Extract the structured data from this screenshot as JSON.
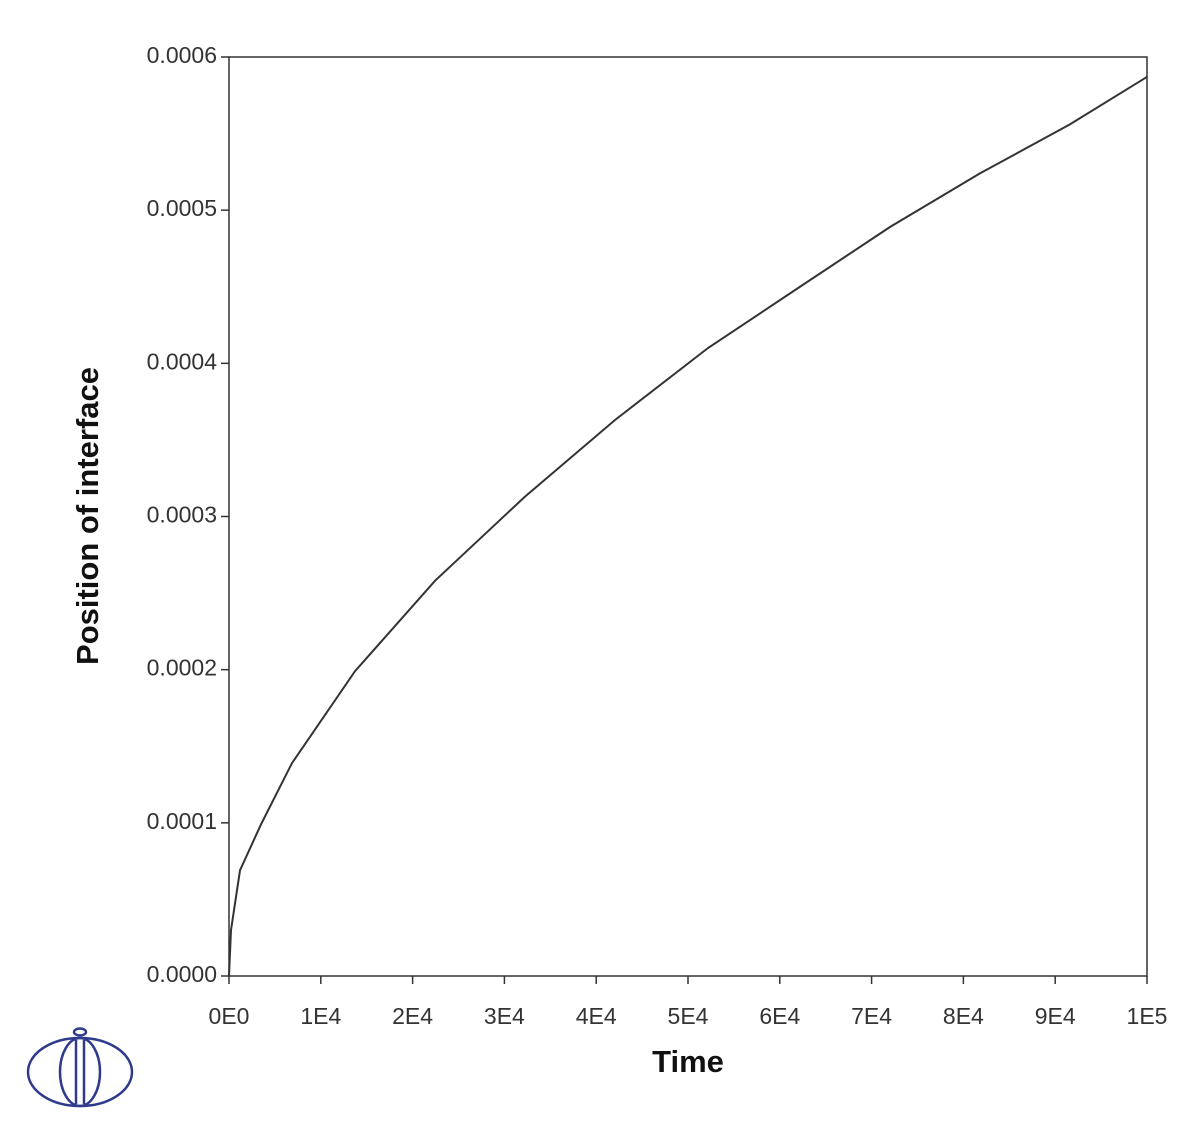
{
  "chart_data": {
    "type": "line",
    "x_label": "Time",
    "y_label": "Position of interface",
    "x": [
      0,
      218,
      1200,
      3486,
      6863,
      13725,
      22440,
      32244,
      42048,
      52179,
      62200,
      72000,
      81800,
      91600,
      100000
    ],
    "series": [
      {
        "color": "#333333",
        "values": [
          0,
          3e-05,
          6.9e-05,
          9.9e-05,
          0.000139,
          0.000199,
          0.000258,
          0.000313,
          0.000363,
          0.00041,
          0.00045,
          0.000489,
          0.000524,
          0.000556,
          0.000587
        ]
      }
    ],
    "xlim": [
      0,
      100000
    ],
    "xticks": [
      {
        "value": 0,
        "label": "0E0"
      },
      {
        "value": 10000,
        "label": "1E4"
      },
      {
        "value": 20000,
        "label": "2E4"
      },
      {
        "value": 30000,
        "label": "3E4"
      },
      {
        "value": 40000,
        "label": "4E4"
      },
      {
        "value": 50000,
        "label": "5E4"
      },
      {
        "value": 60000,
        "label": "6E4"
      },
      {
        "value": 70000,
        "label": "7E4"
      },
      {
        "value": 80000,
        "label": "8E4"
      },
      {
        "value": 90000,
        "label": "9E4"
      },
      {
        "value": 100000,
        "label": "1E5"
      }
    ],
    "ylim": [
      0,
      0.0006
    ],
    "yticks": [
      {
        "value": 0,
        "label": "0.0000"
      },
      {
        "value": 0.0001,
        "label": "0.0001"
      },
      {
        "value": 0.0002,
        "label": "0.0002"
      },
      {
        "value": 0.0003,
        "label": "0.0003"
      },
      {
        "value": 0.0004,
        "label": "0.0004"
      },
      {
        "value": 0.0005,
        "label": "0.0005"
      },
      {
        "value": 0.0006,
        "label": "0.0006"
      }
    ],
    "grid": false
  }
}
